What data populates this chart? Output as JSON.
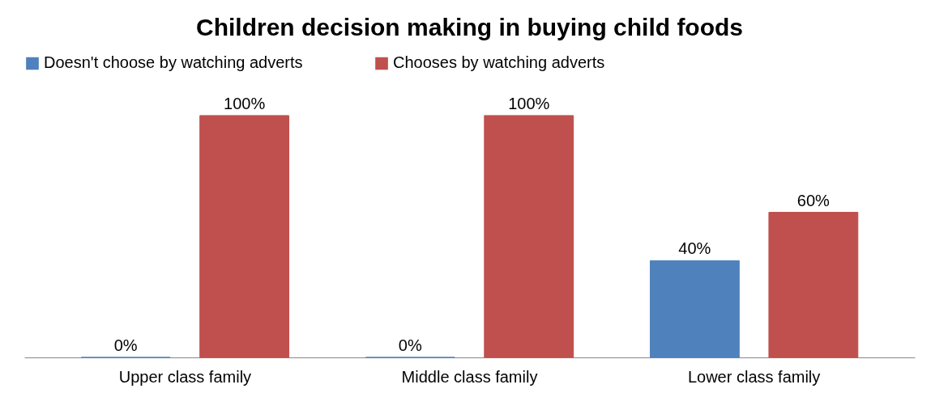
{
  "chart_data": {
    "type": "bar",
    "title": "Children decision making in buying child foods",
    "categories": [
      "Upper class family",
      "Middle class family",
      "Lower class family"
    ],
    "series": [
      {
        "name": "Doesn't  choose by watching adverts",
        "color": "#4f81bd",
        "values": [
          0,
          0,
          40
        ],
        "value_labels": [
          "0%",
          "0%",
          "40%"
        ]
      },
      {
        "name": "Chooses by watching adverts",
        "color": "#c0504d",
        "values": [
          100,
          100,
          60
        ],
        "value_labels": [
          "100%",
          "100%",
          "60%"
        ]
      }
    ],
    "legend": "top"
  }
}
